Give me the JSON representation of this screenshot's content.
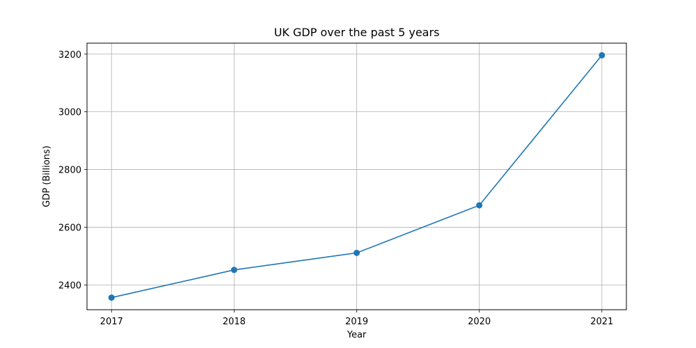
{
  "chart_data": {
    "type": "line",
    "title": "UK GDP over the past 5 years",
    "xlabel": "Year",
    "ylabel": "GDP (Billions)",
    "x": [
      2017,
      2018,
      2019,
      2020,
      2021
    ],
    "series": [
      {
        "values": [
          2356,
          2452,
          2511,
          2676,
          3196
        ],
        "color": "#1f77b4",
        "marker": "circle"
      }
    ],
    "x_ticks": [
      "2017",
      "2018",
      "2019",
      "2020",
      "2021"
    ],
    "y_ticks": [
      "2400",
      "2600",
      "2800",
      "3000",
      "3200"
    ],
    "xlim": [
      2016.8,
      2021.2
    ],
    "ylim": [
      2314,
      3238
    ],
    "grid": true,
    "legend": "none"
  }
}
